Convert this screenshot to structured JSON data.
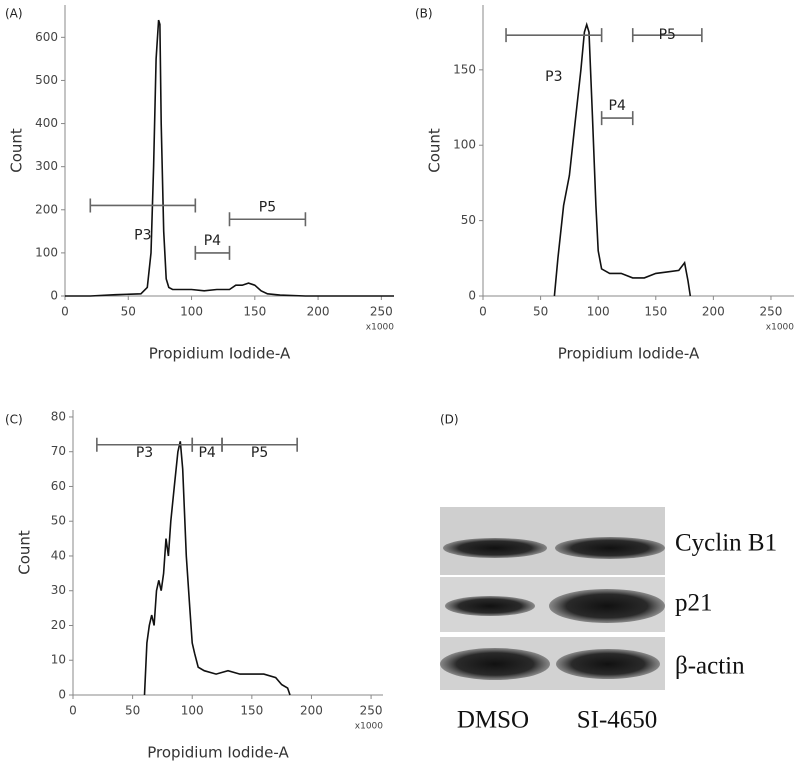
{
  "chart_data": [
    {
      "panel": "(A)",
      "type": "line",
      "x_label": "Propidium Iodide-A",
      "x_unit": "x1000",
      "y_label": "Count",
      "xlim": [
        0,
        260
      ],
      "ylim": [
        0,
        675
      ],
      "xticks": [
        0,
        50,
        100,
        150,
        200,
        250
      ],
      "yticks": [
        0,
        100,
        200,
        300,
        400,
        500,
        600
      ],
      "series": [
        {
          "color": "#111111",
          "x": [
            0,
            20,
            40,
            60,
            65,
            68,
            70,
            72,
            74,
            75,
            76,
            78,
            80,
            82,
            85,
            90,
            100,
            110,
            120,
            130,
            135,
            140,
            145,
            150,
            155,
            160,
            170,
            190,
            260
          ],
          "values": [
            0,
            0,
            3,
            5,
            20,
            100,
            300,
            550,
            640,
            630,
            400,
            150,
            40,
            20,
            15,
            15,
            15,
            12,
            15,
            15,
            25,
            25,
            30,
            25,
            12,
            5,
            2,
            0,
            0
          ]
        }
      ],
      "gates": [
        {
          "label": "P3",
          "x": [
            20,
            103
          ],
          "y": 210
        },
        {
          "label": "P4",
          "x": [
            103,
            130
          ],
          "y": 100
        },
        {
          "label": "P5",
          "x": [
            130,
            190
          ],
          "y": 178
        }
      ]
    },
    {
      "panel": "(B)",
      "type": "line",
      "x_label": "Propidium Iodide-A",
      "x_unit": "x1000",
      "y_label": "Count",
      "xlim": [
        0,
        270
      ],
      "ylim": [
        0,
        193
      ],
      "xticks": [
        0,
        50,
        100,
        150,
        200,
        250
      ],
      "yticks": [
        0,
        50,
        100,
        150
      ],
      "series": [
        {
          "color": "#111111",
          "x": [
            62,
            65,
            70,
            75,
            80,
            85,
            88,
            90,
            92,
            95,
            98,
            100,
            103,
            110,
            120,
            130,
            140,
            150,
            160,
            170,
            175,
            178,
            180
          ],
          "values": [
            0,
            25,
            60,
            80,
            115,
            150,
            175,
            180,
            175,
            120,
            60,
            30,
            18,
            15,
            15,
            12,
            12,
            15,
            16,
            17,
            22,
            10,
            0
          ]
        }
      ],
      "gates": [
        {
          "label": "P3",
          "x": [
            20,
            103
          ],
          "y": 173
        },
        {
          "label": "P4",
          "x": [
            103,
            130
          ],
          "y": 118
        },
        {
          "label": "P5",
          "x": [
            130,
            190
          ],
          "y": 173
        }
      ]
    },
    {
      "panel": "(C)",
      "type": "line",
      "x_label": "Propidium Iodide-A",
      "x_unit": "x1000",
      "y_label": "Count",
      "xlim": [
        0,
        260
      ],
      "ylim": [
        0,
        82
      ],
      "xticks": [
        0,
        50,
        100,
        150,
        200,
        250
      ],
      "yticks": [
        0,
        10,
        20,
        30,
        40,
        50,
        60,
        70,
        80
      ],
      "series": [
        {
          "color": "#111111",
          "x": [
            60,
            62,
            64,
            66,
            68,
            70,
            72,
            74,
            76,
            78,
            80,
            82,
            85,
            88,
            90,
            92,
            95,
            98,
            100,
            102,
            105,
            110,
            120,
            130,
            140,
            150,
            160,
            170,
            175,
            180,
            182
          ],
          "values": [
            0,
            15,
            20,
            23,
            20,
            30,
            33,
            30,
            35,
            45,
            40,
            50,
            60,
            70,
            73,
            65,
            40,
            25,
            15,
            12,
            8,
            7,
            6,
            7,
            6,
            6,
            6,
            5,
            3,
            2,
            0
          ]
        }
      ],
      "gates": [
        {
          "label": "P3",
          "x": [
            20,
            100
          ],
          "y": 72
        },
        {
          "label": "P4",
          "x": [
            100,
            125
          ],
          "y": 72
        },
        {
          "label": "P5",
          "x": [
            125,
            188
          ],
          "y": 72
        }
      ]
    }
  ],
  "blot": {
    "panel": "(D)",
    "bands": [
      "Cyclin B1",
      "p21",
      "β-actin"
    ],
    "lanes": [
      "DMSO",
      "SI-4650"
    ]
  }
}
